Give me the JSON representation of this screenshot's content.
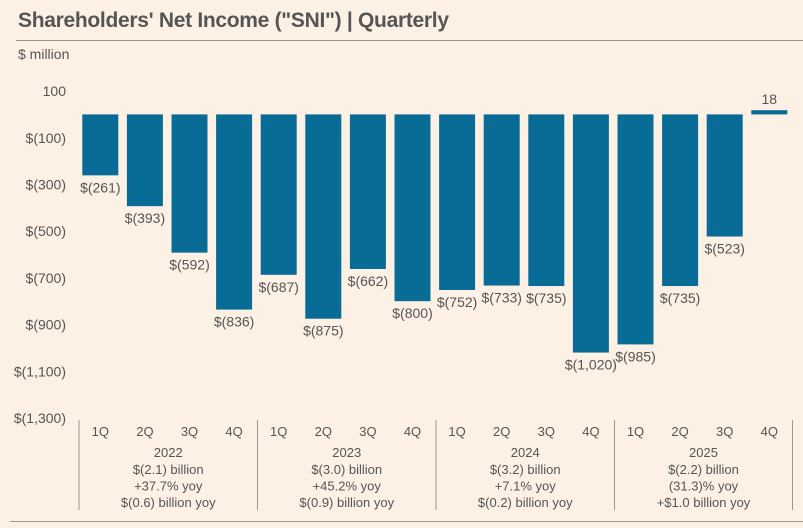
{
  "chart_data": {
    "type": "bar",
    "title": "Shareholders' Net Income (\"SNI\") | Quarterly",
    "ylabel": "$ million",
    "ylim": [
      -1300,
      100
    ],
    "yticks": [
      100,
      -100,
      -300,
      -500,
      -700,
      -900,
      -1100,
      -1300
    ],
    "ytick_labels": [
      "100",
      "$(100)",
      "$(300)",
      "$(500)",
      "$(700)",
      "$(900)",
      "$(1,100)",
      "$(1,300)"
    ],
    "categories": [
      "1Q",
      "2Q",
      "3Q",
      "4Q",
      "1Q",
      "2Q",
      "3Q",
      "4Q",
      "1Q",
      "2Q",
      "3Q",
      "4Q",
      "1Q",
      "2Q",
      "3Q",
      "4Q"
    ],
    "values": [
      -261,
      -393,
      -592,
      -836,
      -687,
      -875,
      -662,
      -800,
      -752,
      -733,
      -735,
      -1020,
      -985,
      -735,
      -523,
      18
    ],
    "value_labels": [
      "$(261)",
      "$(393)",
      "$(592)",
      "$(836)",
      "$(687)",
      "$(875)",
      "$(662)",
      "$(800)",
      "$(752)",
      "$(733)",
      "$(735)",
      "$(1,020)",
      "$(985)",
      "$(735)",
      "$(523)",
      "18"
    ],
    "bar_color": "#086c96",
    "groups": [
      {
        "year": "2022",
        "lines": [
          "$(2.1) billion",
          "+37.7% yoy",
          "$(0.6) billion yoy"
        ]
      },
      {
        "year": "2023",
        "lines": [
          "$(3.0) billion",
          "+45.2% yoy",
          "$(0.9) billion yoy"
        ]
      },
      {
        "year": "2024",
        "lines": [
          "$(3.2) billion",
          "+7.1% yoy",
          "$(0.2) billion yoy"
        ]
      },
      {
        "year": "2025",
        "lines": [
          "$(2.2) billion",
          "(31.3)% yoy",
          "+$1.0 billion yoy"
        ]
      }
    ]
  }
}
